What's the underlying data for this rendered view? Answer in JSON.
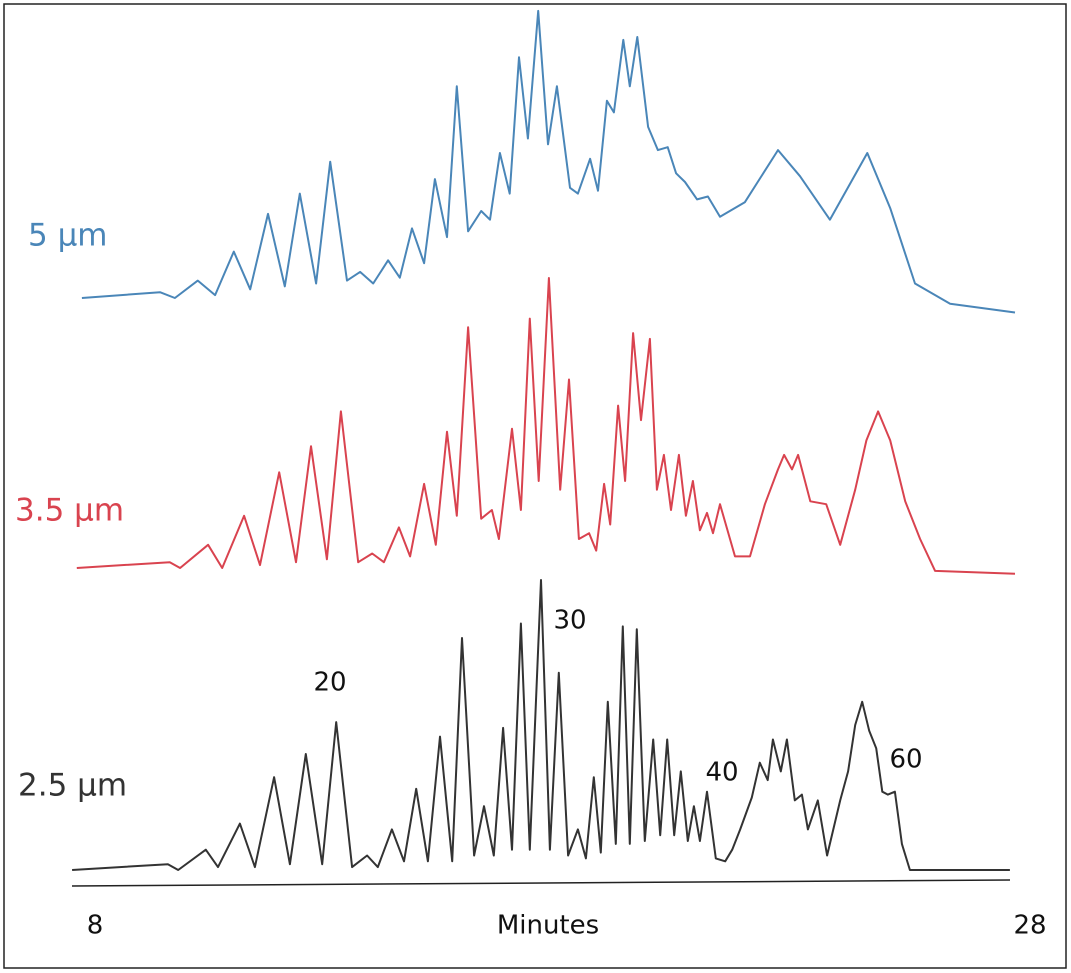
{
  "chart_data": {
    "type": "line",
    "xlabel": "Minutes",
    "xlim": [
      8,
      28
    ],
    "xticks": [
      8,
      28
    ],
    "series": [
      {
        "name": "5 µm",
        "color": "#4a86b8",
        "x": [
          7.72,
          9.39,
          9.71,
          10.2,
          10.57,
          10.97,
          11.32,
          11.7,
          12.06,
          12.38,
          12.73,
          13.03,
          13.39,
          13.67,
          13.95,
          14.27,
          14.52,
          14.78,
          15.04,
          15.27,
          15.53,
          15.74,
          15.98,
          16.26,
          16.45,
          16.66,
          16.87,
          17.07,
          17.26,
          17.48,
          17.69,
          17.88,
          18.16,
          18.33,
          18.59,
          18.76,
          18.95,
          19.1,
          19.3,
          19.44,
          19.6,
          19.83,
          20.04,
          20.25,
          20.43,
          20.62,
          20.88,
          21.11,
          21.37,
          21.9,
          22.61,
          23.08,
          23.72,
          24.52,
          25.01,
          25.54,
          26.29,
          27.68
        ],
        "values": [
          0,
          2,
          0,
          6,
          1,
          16,
          3,
          29,
          4,
          36,
          5,
          47,
          6,
          9,
          5,
          13,
          7,
          24,
          12,
          41,
          21,
          73,
          23,
          30,
          27,
          50,
          36,
          83,
          55,
          99,
          53,
          73,
          38,
          36,
          48,
          37,
          68,
          64,
          89,
          73,
          90,
          59,
          51,
          52,
          43,
          40,
          34,
          35,
          28,
          33,
          51,
          42,
          27,
          50,
          31,
          5,
          -2,
          -5
        ]
      },
      {
        "name": "3.5 µm",
        "color": "#d9434f",
        "x": [
          7.61,
          9.6,
          9.82,
          10.42,
          10.72,
          11.19,
          11.53,
          11.94,
          12.3,
          12.62,
          12.96,
          13.26,
          13.63,
          13.93,
          14.18,
          14.5,
          14.74,
          15.04,
          15.29,
          15.53,
          15.74,
          15.98,
          16.26,
          16.49,
          16.64,
          16.92,
          17.11,
          17.3,
          17.49,
          17.71,
          17.95,
          18.14,
          18.35,
          18.57,
          18.72,
          18.89,
          19.02,
          19.19,
          19.34,
          19.51,
          19.68,
          19.87,
          20.02,
          20.17,
          20.32,
          20.49,
          20.64,
          20.79,
          20.94,
          21.09,
          21.22,
          21.37,
          21.69,
          22.01,
          22.33,
          22.61,
          22.74,
          22.91,
          23.04,
          23.3,
          23.64,
          23.94,
          24.26,
          24.5,
          24.75,
          25.01,
          25.33,
          25.65,
          25.97,
          27.68
        ],
        "values": [
          0,
          2,
          0,
          8,
          0,
          18,
          1,
          33,
          2,
          42,
          3,
          54,
          2,
          5,
          2,
          14,
          4,
          29,
          8,
          47,
          18,
          83,
          17,
          20,
          10,
          48,
          20,
          86,
          30,
          100,
          27,
          65,
          10,
          12,
          6,
          29,
          15,
          56,
          30,
          81,
          51,
          79,
          27,
          39,
          20,
          39,
          18,
          30,
          13,
          19,
          12,
          22,
          4,
          4,
          22,
          34,
          39,
          34,
          39,
          23,
          22,
          8,
          27,
          44,
          54,
          44,
          23,
          10,
          -1,
          -2
        ]
      },
      {
        "name": "2.5 µm",
        "color": "#333333",
        "x": [
          7.51,
          9.56,
          9.78,
          10.37,
          10.63,
          11.1,
          11.42,
          11.83,
          12.17,
          12.51,
          12.86,
          13.16,
          13.5,
          13.82,
          14.05,
          14.35,
          14.61,
          14.87,
          15.12,
          15.38,
          15.64,
          15.85,
          16.11,
          16.32,
          16.53,
          16.73,
          16.92,
          17.11,
          17.3,
          17.54,
          17.73,
          17.92,
          18.12,
          18.33,
          18.5,
          18.67,
          18.82,
          18.97,
          19.14,
          19.29,
          19.44,
          19.59,
          19.76,
          19.94,
          20.09,
          20.24,
          20.39,
          20.53,
          20.68,
          20.81,
          20.94,
          21.09,
          21.28,
          21.48,
          21.63,
          21.8,
          22.05,
          22.22,
          22.39,
          22.5,
          22.67,
          22.8,
          22.97,
          23.12,
          23.25,
          23.46,
          23.66,
          23.94,
          24.11,
          24.26,
          24.41,
          24.56,
          24.71,
          24.84,
          24.96,
          25.11,
          25.26,
          25.43,
          27.57
        ],
        "values": [
          0,
          2,
          0,
          7,
          1,
          16,
          1,
          32,
          2,
          40,
          2,
          51,
          1,
          5,
          1,
          14,
          3,
          28,
          3,
          46,
          3,
          80,
          5,
          22,
          5,
          49,
          7,
          85,
          7,
          100,
          7,
          68,
          5,
          14,
          4,
          32,
          6,
          58,
          9,
          84,
          9,
          83,
          10,
          45,
          12,
          45,
          12,
          34,
          10,
          22,
          10,
          27,
          4,
          3,
          7,
          14,
          25,
          37,
          31,
          45,
          34,
          45,
          24,
          26,
          14,
          24,
          5,
          24,
          34,
          50,
          58,
          48,
          42,
          27,
          26,
          27,
          9,
          0,
          0
        ]
      }
    ],
    "annotations": [
      "20",
      "30",
      "40",
      "60"
    ]
  }
}
